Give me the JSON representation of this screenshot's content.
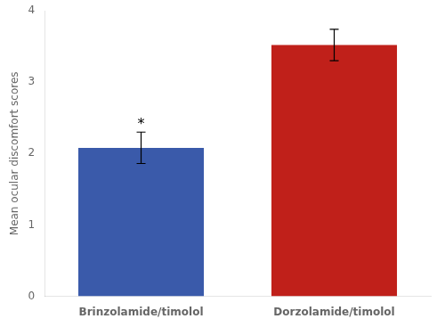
{
  "chart_data": {
    "type": "bar",
    "categories": [
      "Brinzolamide/timolol",
      "Dorzolamide/timolol"
    ],
    "values": [
      2.08,
      3.52
    ],
    "errors": [
      0.22,
      0.22
    ],
    "colors": [
      "#3a5aaa",
      "#c0201a"
    ],
    "ylabel": "Mean ocular discomfort scores",
    "ylim": [
      0,
      4
    ],
    "yticks": [
      0,
      1,
      2,
      3,
      4
    ],
    "annotations": [
      {
        "text": "*",
        "x": "Brinzolamide/timolol",
        "y": 2.31
      }
    ],
    "grid": false
  }
}
